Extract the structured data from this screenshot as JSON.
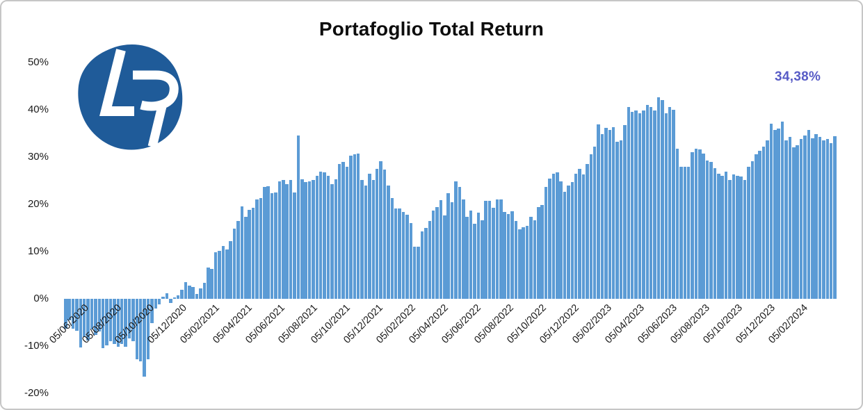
{
  "window": {
    "border_color": "#C6C6C6",
    "background_color": "#FFFFFF"
  },
  "title": "Portafoglio Total Return",
  "logo": {
    "letters": "LR",
    "background_color": "#1F5B99",
    "letter_color": "#FFFFFF"
  },
  "annotation": {
    "text": "34,38%",
    "color": "#585CC6"
  },
  "chart_data": {
    "type": "bar",
    "title": "Portafoglio Total Return",
    "unit": "%",
    "bar_color": "#5B9BD5",
    "gridlines": false,
    "legend": "none",
    "ylim": [
      -20,
      50
    ],
    "yticks": [
      {
        "label": "50%",
        "value": 50
      },
      {
        "label": "40%",
        "value": 40
      },
      {
        "label": "30%",
        "value": 30
      },
      {
        "label": "20%",
        "value": 20
      },
      {
        "label": "10%",
        "value": 10
      },
      {
        "label": "0%",
        "value": 0
      },
      {
        "label": "-10%",
        "value": -10
      },
      {
        "label": "-20%",
        "value": -20
      }
    ],
    "xtick_labels": [
      "05/06/2020",
      "05/08/2020",
      "05/10/2020",
      "05/12/2020",
      "05/02/2021",
      "05/04/2021",
      "05/06/2021",
      "05/08/2021",
      "05/10/2021",
      "05/12/2021",
      "05/02/2022",
      "05/04/2022",
      "05/06/2022",
      "05/08/2022",
      "05/10/2022",
      "05/12/2022",
      "05/02/2023",
      "05/04/2023",
      "05/06/2023",
      "05/08/2023",
      "05/10/2023",
      "05/12/2023",
      "05/02/2024"
    ],
    "final_value_label": "34,38%",
    "values": [
      -6.3,
      -4.5,
      -6.3,
      -6.8,
      -10.3,
      -8.1,
      -8.8,
      -6.4,
      -7.6,
      -6.9,
      -10.4,
      -9.9,
      -9.0,
      -9.6,
      -10.1,
      -9.6,
      -10.1,
      -8.4,
      -9.0,
      -12.8,
      -13.3,
      -16.5,
      -12.8,
      -5.2,
      -2.0,
      -1.2,
      0.5,
      1.2,
      -0.9,
      0.3,
      0.7,
      1.9,
      3.6,
      2.8,
      2.5,
      1.0,
      2.2,
      3.4,
      6.6,
      6.3,
      9.8,
      10.2,
      11.2,
      10.5,
      12.2,
      14.9,
      16.5,
      19.6,
      17.4,
      18.8,
      19.3,
      21.0,
      21.3,
      23.7,
      23.8,
      22.3,
      22.5,
      24.8,
      25.2,
      24.3,
      25.2,
      22.5,
      34.5,
      25.3,
      24.7,
      24.8,
      25.2,
      26.1,
      26.9,
      26.7,
      26.1,
      24.2,
      25.3,
      28.6,
      29.0,
      28.0,
      30.3,
      30.6,
      30.8,
      25.1,
      24.0,
      26.4,
      25.1,
      27.5,
      29.1,
      27.4,
      24.0,
      21.3,
      19.1,
      19.1,
      18.4,
      17.8,
      16.1,
      11.1,
      11.0,
      14.2,
      15.0,
      16.5,
      18.7,
      19.4,
      20.9,
      17.7,
      22.4,
      20.4,
      24.8,
      23.7,
      21.1,
      17.4,
      18.7,
      15.9,
      18.3,
      16.6,
      20.7,
      20.8,
      19.3,
      21.0,
      21.0,
      18.4,
      17.9,
      18.6,
      16.4,
      14.7,
      15.2,
      15.5,
      17.4,
      16.6,
      19.4,
      19.9,
      23.7,
      25.4,
      26.4,
      26.7,
      24.8,
      22.7,
      23.9,
      24.7,
      26.4,
      27.5,
      26.3,
      28.6,
      30.6,
      32.2,
      36.9,
      34.8,
      36.2,
      35.7,
      36.3,
      33.3,
      33.6,
      36.7,
      40.6,
      39.5,
      39.9,
      39.3,
      39.8,
      41.0,
      40.6,
      39.8,
      42.6,
      42.0,
      39.3,
      40.6,
      40.0,
      31.8,
      28.0,
      28.0,
      28.0,
      31.1,
      31.8,
      31.6,
      30.7,
      29.2,
      29.0,
      27.6,
      26.4,
      26.1,
      26.9,
      25.2,
      26.3,
      26.1,
      25.9,
      25.2,
      27.9,
      29.1,
      30.6,
      31.3,
      32.2,
      33.5,
      37.0,
      35.7,
      36.0,
      37.5,
      33.5,
      34.3,
      32.1,
      32.5,
      33.8,
      34.5,
      35.7,
      34.0,
      34.8,
      34.3,
      33.5,
      33.8,
      33.0,
      34.38
    ]
  }
}
